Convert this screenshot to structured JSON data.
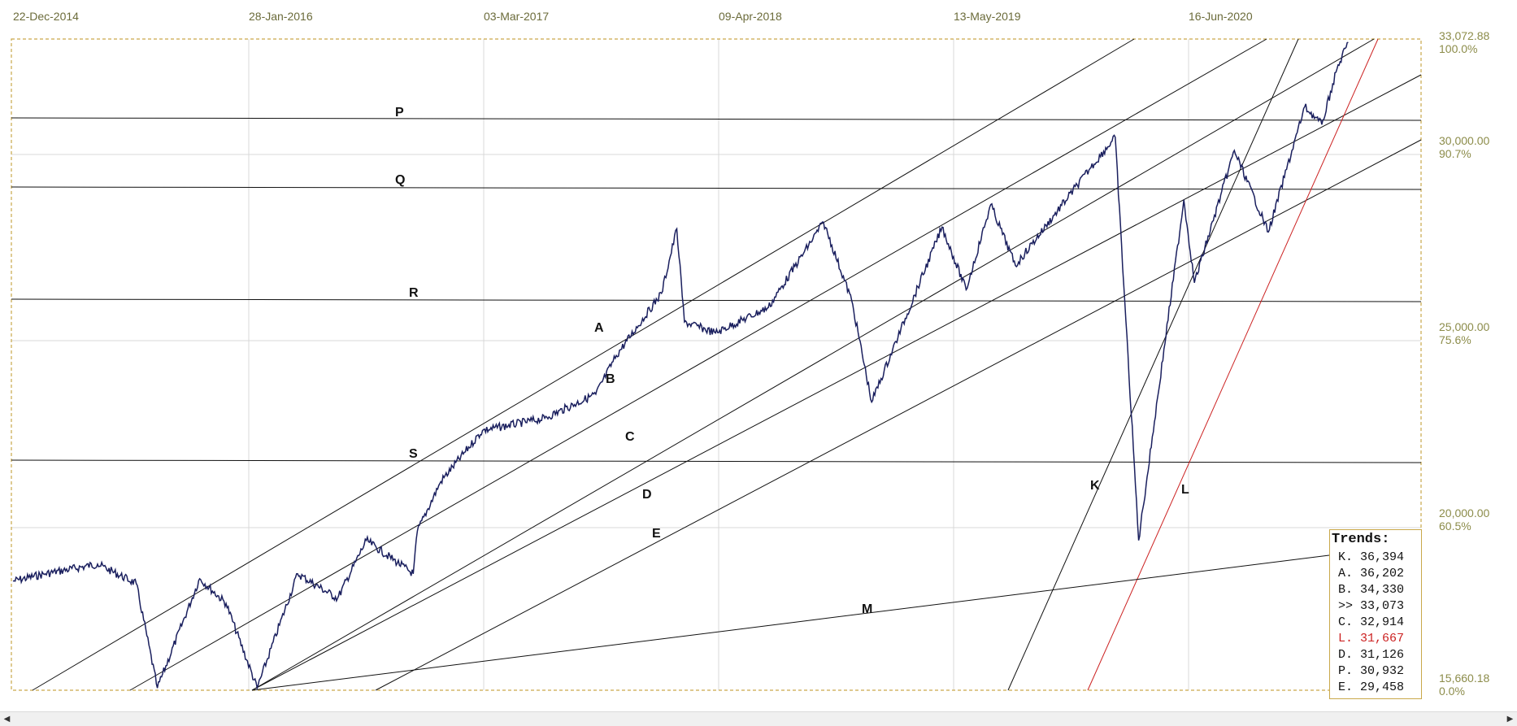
{
  "chart_data": {
    "type": "line",
    "title": "",
    "x_tick_labels": [
      "22-Dec-2014",
      "28-Jan-2016",
      "03-Mar-2017",
      "09-Apr-2018",
      "13-May-2019",
      "16-Jun-2020"
    ],
    "x_range": [
      "2014-12-22",
      "2021-03-15"
    ],
    "y_range": [
      15660.18,
      33072.88
    ],
    "y_scale": "log",
    "grid": true,
    "y_axis_labels": [
      {
        "value": "33,072.88",
        "pct": "100.0%"
      },
      {
        "value": "30,000.00",
        "pct": "90.7%"
      },
      {
        "value": "25,000.00",
        "pct": "75.6%"
      },
      {
        "value": "20,000.00",
        "pct": "60.5%"
      },
      {
        "value": "15,660.18",
        "pct": "0.0%"
      }
    ],
    "series": [
      {
        "values": [
          [
            "2014-12-22",
            17750
          ],
          [
            "2015-02-15",
            17900
          ],
          [
            "2015-05-15",
            18100
          ],
          [
            "2015-07-20",
            17700
          ],
          [
            "2015-08-25",
            15700
          ],
          [
            "2015-11-05",
            17800
          ],
          [
            "2015-12-20",
            17300
          ],
          [
            "2016-02-11",
            15700
          ],
          [
            "2016-04-20",
            17900
          ],
          [
            "2016-06-27",
            17400
          ],
          [
            "2016-08-15",
            18600
          ],
          [
            "2016-11-03",
            17900
          ],
          [
            "2016-11-10",
            18800
          ],
          [
            "2016-12-20",
            19900
          ],
          [
            "2017-03-01",
            21100
          ],
          [
            "2017-06-15",
            21400
          ],
          [
            "2017-09-10",
            22000
          ],
          [
            "2017-10-15",
            23000
          ],
          [
            "2017-12-31",
            24700
          ],
          [
            "2018-01-26",
            26600
          ],
          [
            "2018-02-08",
            23900
          ],
          [
            "2018-04-02",
            23600
          ],
          [
            "2018-07-01",
            24300
          ],
          [
            "2018-10-03",
            26800
          ],
          [
            "2018-11-20",
            24500
          ],
          [
            "2018-12-24",
            21800
          ],
          [
            "2019-04-23",
            26650
          ],
          [
            "2019-06-03",
            24800
          ],
          [
            "2019-07-15",
            27350
          ],
          [
            "2019-08-26",
            25500
          ],
          [
            "2019-12-31",
            28500
          ],
          [
            "2020-02-12",
            29550
          ],
          [
            "2020-03-23",
            18600
          ],
          [
            "2020-06-08",
            27500
          ],
          [
            "2020-06-26",
            25000
          ],
          [
            "2020-09-02",
            29100
          ],
          [
            "2020-10-30",
            26500
          ],
          [
            "2020-12-31",
            30600
          ],
          [
            "2021-01-29",
            29980
          ],
          [
            "2021-02-24",
            31960
          ],
          [
            "2021-03-15",
            32950
          ]
        ]
      }
    ],
    "trend_lines": [
      {
        "label": "P"
      },
      {
        "label": "Q"
      },
      {
        "label": "R"
      },
      {
        "label": "S"
      },
      {
        "label": "A"
      },
      {
        "label": "B"
      },
      {
        "label": "C"
      },
      {
        "label": "D"
      },
      {
        "label": "E"
      },
      {
        "label": "K"
      },
      {
        "label": "L",
        "color": "#cc2222"
      },
      {
        "label": "M"
      }
    ],
    "colors": {
      "price": "#1a1f5e",
      "trend": "#111111",
      "trend_red": "#cc2222",
      "frame": "#c9a84a",
      "grid": "#d9d9d9",
      "date_text": "#6b6b3a",
      "axis_text": "#8c8c4a"
    }
  },
  "trends_box": {
    "title": "Trends:",
    "rows": [
      {
        "label": "K.",
        "value": "36,394"
      },
      {
        "label": "A.",
        "value": "36,202"
      },
      {
        "label": "B.",
        "value": "34,330"
      },
      {
        "label": ">>",
        "value": "33,073"
      },
      {
        "label": "C.",
        "value": "32,914"
      },
      {
        "label": "L.",
        "value": "31,667",
        "highlight": true
      },
      {
        "label": "D.",
        "value": "31,126"
      },
      {
        "label": "P.",
        "value": "30,932"
      },
      {
        "label": "E.",
        "value": "29,458"
      }
    ]
  },
  "scrollbar": {
    "left_icon": "scroll-left-icon",
    "right_icon": "scroll-right-icon"
  }
}
